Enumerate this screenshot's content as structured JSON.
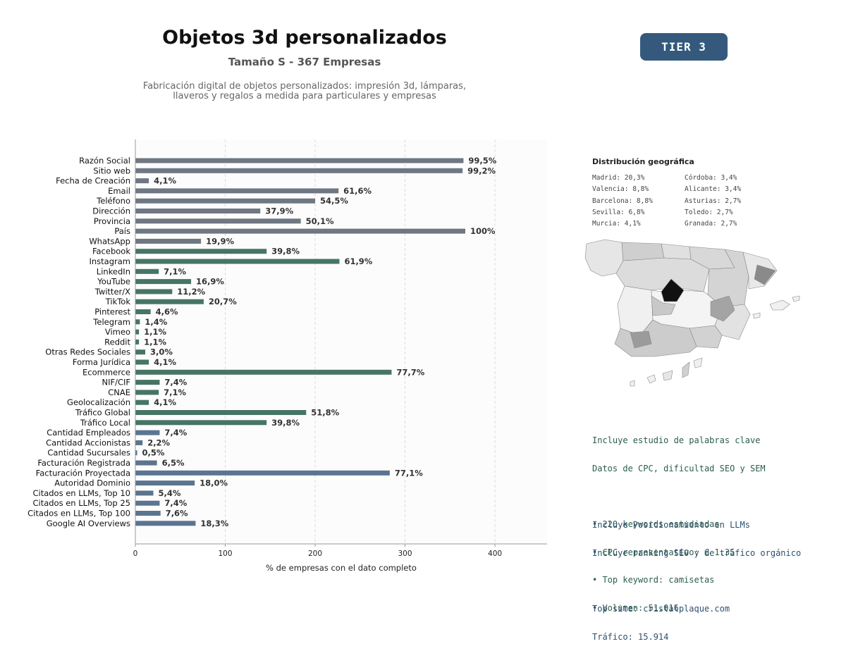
{
  "header": {
    "title": "Objetos 3d personalizados",
    "subtitle": "Tamaño S - 367 Empresas",
    "description_line1": "Fabricación digital de objetos personalizados: impresión 3d, lámparas,",
    "description_line2": "llaveros y regalos a medida para particulares y empresas",
    "tier": "TIER 3"
  },
  "colors": {
    "gray": "#6e7782",
    "green": "#467564",
    "blue": "#5b7490",
    "tier_bg": "#34597d",
    "text_green": "#2c5e4a",
    "text_blue": "#2f4f6e"
  },
  "chart_data": {
    "type": "bar",
    "orientation": "horizontal",
    "xlabel": "% de empresas con el dato completo",
    "xlim": [
      0,
      458
    ],
    "xticks": [
      0,
      100,
      200,
      300,
      400
    ],
    "grid": "vertical dashed",
    "categories": [
      "Razón Social",
      "Sitio web",
      "Fecha de Creación",
      "Email",
      "Teléfono",
      "Dirección",
      "Provincia",
      "País",
      "WhatsApp",
      "Facebook",
      "Instagram",
      "LinkedIn",
      "YouTube",
      "Twitter/X",
      "TikTok",
      "Pinterest",
      "Telegram",
      "Vimeo",
      "Reddit",
      "Otras Redes Sociales",
      "Forma Jurídica",
      "Ecommerce",
      "NIF/CIF",
      "CNAE",
      "Geolocalización",
      "Tráfico Global",
      "Tráfico Local",
      "Cantidad Empleados",
      "Cantidad Accionistas",
      "Cantidad Sucursales",
      "Facturación Registrada",
      "Facturación Proyectada",
      "Autoridad Dominio",
      "Citados en LLMs, Top 10",
      "Citados en LLMs, Top 25",
      "Citados en LLMs, Top 100",
      "Google AI Overviews"
    ],
    "values": [
      365,
      364,
      15,
      226,
      200,
      139,
      184,
      367,
      73,
      146,
      227,
      26,
      62,
      41,
      76,
      17,
      5,
      4,
      4,
      11,
      15,
      285,
      27,
      26,
      15,
      190,
      146,
      27,
      8,
      2,
      24,
      283,
      66,
      20,
      27,
      28,
      67
    ],
    "labels": [
      "99,5%",
      "99,2%",
      "4,1%",
      "61,6%",
      "54,5%",
      "37,9%",
      "50,1%",
      "100%",
      "19,9%",
      "39,8%",
      "61,9%",
      "7,1%",
      "16,9%",
      "11,2%",
      "20,7%",
      "4,6%",
      "1,4%",
      "1,1%",
      "1,1%",
      "3,0%",
      "4,1%",
      "77,7%",
      "7,4%",
      "7,1%",
      "4,1%",
      "51,8%",
      "39,8%",
      "7,4%",
      "2,2%",
      "0,5%",
      "6,5%",
      "77,1%",
      "18,0%",
      "5,4%",
      "7,4%",
      "7,6%",
      "18,3%"
    ],
    "groups": [
      "gray",
      "gray",
      "gray",
      "gray",
      "gray",
      "gray",
      "gray",
      "gray",
      "gray",
      "green",
      "green",
      "green",
      "green",
      "green",
      "green",
      "green",
      "green",
      "green",
      "green",
      "green",
      "green",
      "green",
      "green",
      "green",
      "green",
      "green",
      "green",
      "blue",
      "blue",
      "blue",
      "blue",
      "blue",
      "blue",
      "blue",
      "blue",
      "blue",
      "blue"
    ]
  },
  "geo": {
    "title": "Distribución geográfica",
    "items": [
      "Madrid: 20,3%",
      "Córdoba: 3,4%",
      "Valencia: 8,8%",
      "Alicante: 3,4%",
      "Barcelona: 8,8%",
      "Asturias: 2,7%",
      "Sevilla: 6,8%",
      "Toledo: 2,7%",
      "Murcia: 4,1%",
      "Granada: 2,7%"
    ]
  },
  "keywords": {
    "line1": "Incluye estudio de palabras clave",
    "line2": "Datos de CPC, dificultad SEO y SEM",
    "bullet1": "• 220 keywords estudiadas",
    "bullet2": "• CPC representativo: € 1.35",
    "bullet3": "• Top keyword: camisetas",
    "bullet4": "• Volumen: 51.016"
  },
  "llm": {
    "line1": "Incluye Posicionamiento en LLMs",
    "line2": "Incluye ranking SEO y de tráfico orgánico",
    "top_site": "Top site: cristalplaque.com",
    "traffic": "Tráfico: 15.914"
  }
}
